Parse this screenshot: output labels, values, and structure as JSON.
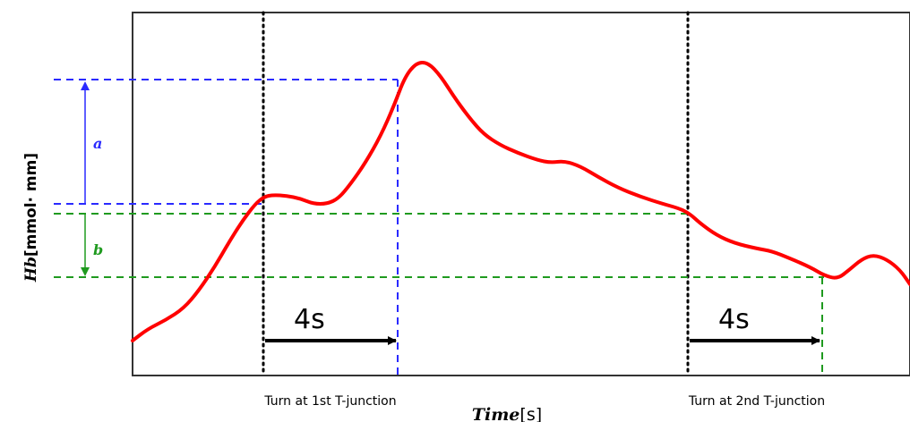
{
  "chart_data": {
    "type": "line",
    "xlabel": {
      "italic": "Time",
      "unit": "[s]"
    },
    "ylabel": {
      "italic": "Hb",
      "unit": "[mmol· mm]"
    },
    "grid": false,
    "legend": "none",
    "series": [
      {
        "color": "#ff0000",
        "points": [
          [
            148,
            381
          ],
          [
            165,
            368
          ],
          [
            185,
            358
          ],
          [
            205,
            345
          ],
          [
            222,
            325
          ],
          [
            240,
            298
          ],
          [
            255,
            272
          ],
          [
            270,
            248
          ],
          [
            285,
            228
          ],
          [
            295,
            220
          ],
          [
            305,
            218
          ],
          [
            320,
            219
          ],
          [
            335,
            222
          ],
          [
            350,
            228
          ],
          [
            365,
            228
          ],
          [
            378,
            222
          ],
          [
            392,
            205
          ],
          [
            408,
            182
          ],
          [
            425,
            152
          ],
          [
            440,
            118
          ],
          [
            452,
            86
          ],
          [
            465,
            70
          ],
          [
            478,
            70
          ],
          [
            492,
            85
          ],
          [
            508,
            110
          ],
          [
            525,
            133
          ],
          [
            540,
            150
          ],
          [
            558,
            162
          ],
          [
            578,
            171
          ],
          [
            600,
            179
          ],
          [
            615,
            182
          ],
          [
            630,
            180
          ],
          [
            648,
            186
          ],
          [
            668,
            198
          ],
          [
            690,
            210
          ],
          [
            715,
            220
          ],
          [
            740,
            228
          ],
          [
            758,
            233
          ],
          [
            770,
            239
          ],
          [
            782,
            250
          ],
          [
            800,
            263
          ],
          [
            820,
            272
          ],
          [
            845,
            278
          ],
          [
            862,
            281
          ],
          [
            882,
            289
          ],
          [
            905,
            299
          ],
          [
            920,
            308
          ],
          [
            935,
            312
          ],
          [
            948,
            302
          ],
          [
            962,
            290
          ],
          [
            975,
            285
          ],
          [
            990,
            290
          ],
          [
            1005,
            302
          ],
          [
            1016,
            318
          ]
        ]
      }
    ],
    "reference_lines": [
      {
        "orientation": "vertical",
        "style": "dotted",
        "color": "#000000",
        "label": "Turn at 1st T-junction"
      },
      {
        "orientation": "vertical",
        "style": "dotted",
        "color": "#000000",
        "label": "Turn at 2nd T-junction"
      },
      {
        "orientation": "horizontal",
        "style": "dashed",
        "color": "#2a2aff"
      },
      {
        "orientation": "horizontal",
        "style": "dashed",
        "color": "#2a2aff"
      },
      {
        "orientation": "horizontal",
        "style": "dashed",
        "color": "#1f9a1f"
      },
      {
        "orientation": "horizontal",
        "style": "dashed",
        "color": "#1f9a1f"
      },
      {
        "orientation": "vertical",
        "style": "dashed",
        "color": "#2a2aff"
      },
      {
        "orientation": "vertical",
        "style": "dashed",
        "color": "#1f9a1f"
      }
    ],
    "annotations": [
      {
        "text": "a",
        "color": "#2a2aff",
        "meaning": "rise from first turn to peak"
      },
      {
        "text": "b",
        "color": "#1f9a1f",
        "meaning": "drop from second turn to trough"
      },
      {
        "text": "4s",
        "color": "#000000"
      },
      {
        "text": "4s",
        "color": "#000000"
      }
    ]
  },
  "labels": {
    "turn1": "Turn at 1st T-junction",
    "turn2": "Turn at 2nd T-junction",
    "interval1": "4s",
    "interval2": "4s",
    "a": "a",
    "b": "b",
    "xlabel_italic": "Time",
    "xlabel_unit": "[s]",
    "ylabel_italic": "Hb",
    "ylabel_unit": "[mmol· mm]"
  },
  "colors": {
    "curve": "#ff0000",
    "blue": "#2a2aff",
    "green": "#1f9a1f",
    "black": "#000000"
  }
}
